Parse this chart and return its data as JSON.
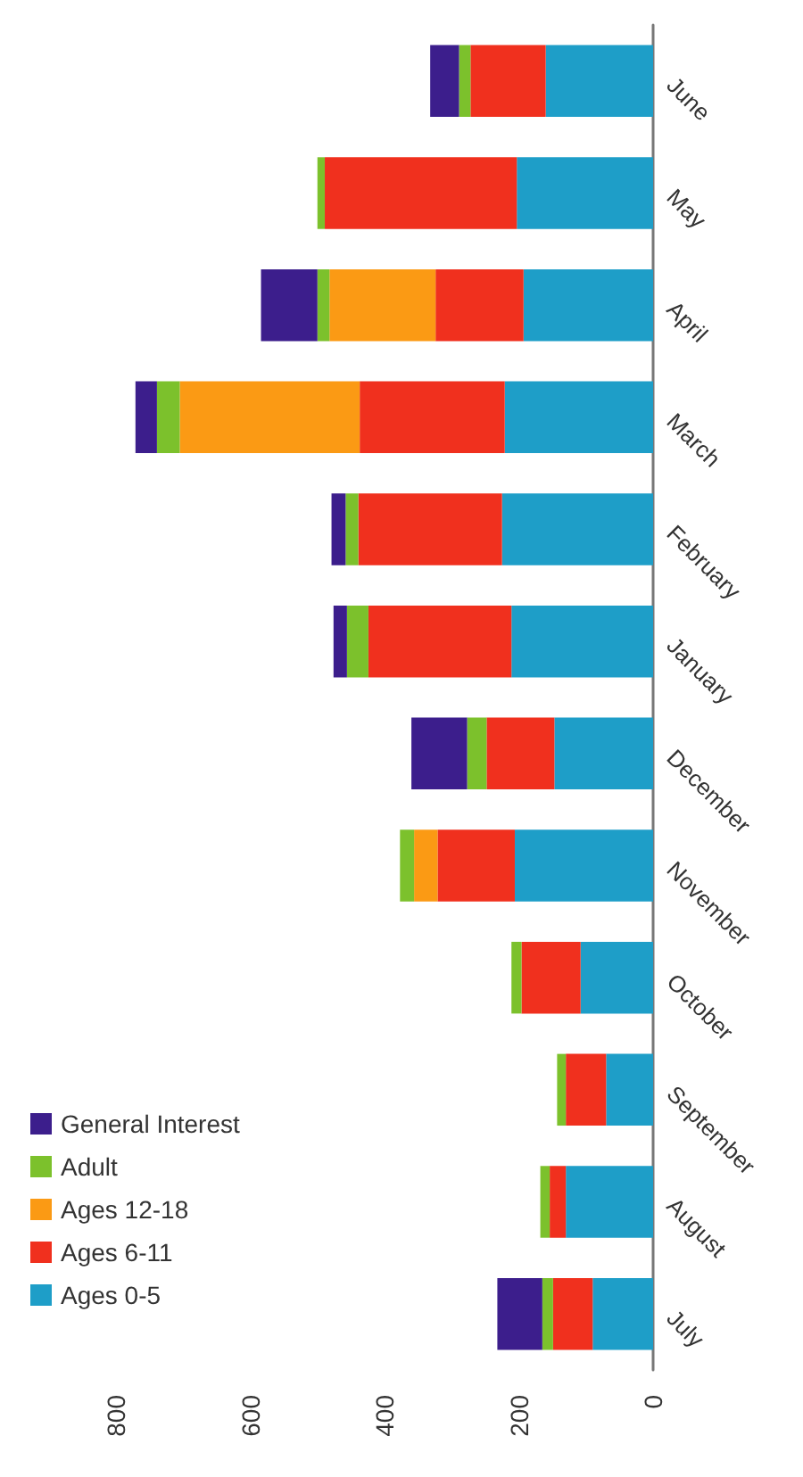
{
  "chart_data": {
    "type": "bar",
    "stacked": true,
    "orientation": "horizontal",
    "categories": [
      "June",
      "May",
      "April",
      "March",
      "February",
      "January",
      "December",
      "November",
      "October",
      "September",
      "August",
      "July"
    ],
    "series": [
      {
        "name": "Ages 0-5",
        "color": "#1e9ec8",
        "values": [
          160,
          203,
          193,
          221,
          225,
          211,
          147,
          206,
          108,
          70,
          130,
          90
        ]
      },
      {
        "name": "Ages 6-11",
        "color": "#f0301e",
        "values": [
          112,
          286,
          131,
          216,
          214,
          213,
          101,
          115,
          88,
          60,
          24,
          59
        ]
      },
      {
        "name": "Ages 12-18",
        "color": "#fb9a14",
        "values": [
          null,
          null,
          158,
          268,
          null,
          null,
          null,
          35,
          null,
          null,
          null,
          null
        ]
      },
      {
        "name": "Adult",
        "color": "#7cc12c",
        "values": [
          17,
          11,
          18,
          34,
          19,
          32,
          29,
          21,
          15,
          13,
          14,
          16
        ]
      },
      {
        "name": "General Interest",
        "color": "#3c1e8c",
        "values": [
          43,
          null,
          84,
          32,
          21,
          20,
          83,
          null,
          null,
          null,
          null,
          67
        ]
      }
    ],
    "xlim": [
      800,
      0
    ],
    "xticks": [
      800,
      600,
      400,
      200,
      0
    ],
    "grid": false,
    "legend": "bottom left"
  }
}
